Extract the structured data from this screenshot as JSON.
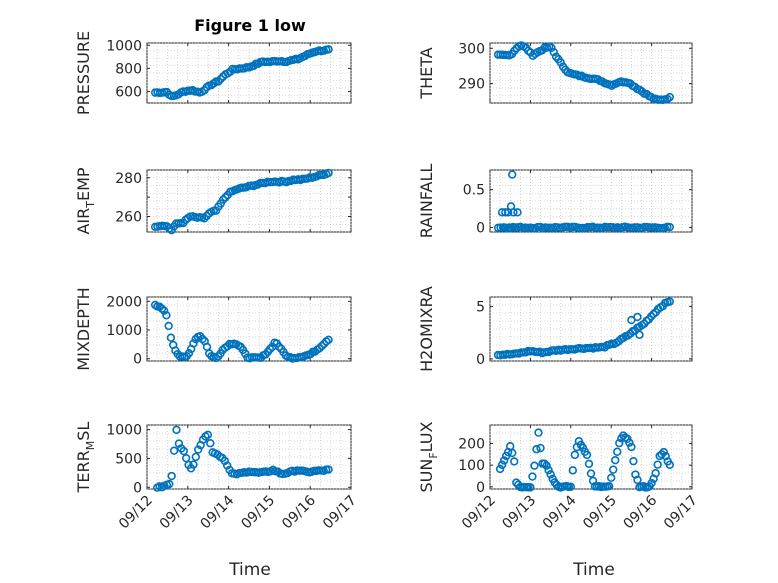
{
  "figure": {
    "title": "Figure 1 low",
    "xlabel": "Time"
  },
  "colors": {
    "marker": "#0072BD",
    "axis": "#262626",
    "grid": "#b8b8b8"
  },
  "chart_data": [
    {
      "type": "scatter",
      "id": "pressure",
      "ylabel": "PRESSURE",
      "ylabel_sub": "",
      "ylim": [
        500,
        1020
      ],
      "yticks": [
        600,
        800,
        1000
      ],
      "yticklabels": [
        "600",
        "800",
        "1000"
      ],
      "xlim": [
        0,
        5
      ],
      "xticklabels": [
        "09/12",
        "09/13",
        "09/14",
        "09/15",
        "09/16",
        "09/17"
      ],
      "show_xticklabels": false,
      "title": "Figure 1 low",
      "grid": true,
      "curve": [
        [
          0.2,
          590
        ],
        [
          0.5,
          595
        ],
        [
          0.6,
          555
        ],
        [
          0.7,
          565
        ],
        [
          0.9,
          600
        ],
        [
          1.1,
          612
        ],
        [
          1.3,
          590
        ],
        [
          1.5,
          640
        ],
        [
          1.6,
          665
        ],
        [
          1.75,
          690
        ],
        [
          1.9,
          740
        ],
        [
          2.1,
          790
        ],
        [
          2.3,
          800
        ],
        [
          2.5,
          810
        ],
        [
          2.7,
          840
        ],
        [
          2.85,
          860
        ],
        [
          3.0,
          855
        ],
        [
          3.2,
          865
        ],
        [
          3.4,
          860
        ],
        [
          3.55,
          870
        ],
        [
          3.7,
          880
        ],
        [
          3.85,
          905
        ],
        [
          4.0,
          930
        ],
        [
          4.15,
          950
        ],
        [
          4.3,
          955
        ],
        [
          4.45,
          960
        ]
      ],
      "count": 75,
      "points": []
    },
    {
      "type": "scatter",
      "id": "theta",
      "ylabel": "THETA",
      "ylabel_sub": "",
      "ylim": [
        284.5,
        301.5
      ],
      "yticks": [
        290,
        300
      ],
      "yticklabels": [
        "290",
        "300"
      ],
      "xlim": [
        0,
        5
      ],
      "xticklabels": [
        "09/12",
        "09/13",
        "09/14",
        "09/15",
        "09/16",
        "09/17"
      ],
      "show_xticklabels": false,
      "title": "",
      "grid": true,
      "curve": [
        [
          0.2,
          298
        ],
        [
          0.5,
          298
        ],
        [
          0.65,
          300
        ],
        [
          0.75,
          301
        ],
        [
          0.9,
          300
        ],
        [
          1.05,
          298
        ],
        [
          1.2,
          299
        ],
        [
          1.35,
          300
        ],
        [
          1.5,
          300.5
        ],
        [
          1.65,
          297.5
        ],
        [
          1.8,
          295
        ],
        [
          1.95,
          293
        ],
        [
          2.1,
          292.5
        ],
        [
          2.3,
          292
        ],
        [
          2.5,
          291.5
        ],
        [
          2.7,
          291
        ],
        [
          2.9,
          290
        ],
        [
          3.0,
          289.5
        ],
        [
          3.2,
          290.5
        ],
        [
          3.4,
          290.5
        ],
        [
          3.6,
          289
        ],
        [
          3.8,
          287.5
        ],
        [
          4.0,
          286
        ],
        [
          4.15,
          285.3
        ],
        [
          4.3,
          285.5
        ],
        [
          4.45,
          286
        ]
      ],
      "count": 75,
      "points": []
    },
    {
      "type": "scatter",
      "id": "air_temp",
      "ylabel": "AIR",
      "ylabel_sub": "T",
      "ylabel_after": "EMP",
      "ylim": [
        252,
        284
      ],
      "yticks": [
        260,
        270,
        280
      ],
      "yticklabels": [
        "260",
        "",
        "280"
      ],
      "xlim": [
        0,
        5
      ],
      "xticklabels": [
        "09/12",
        "09/13",
        "09/14",
        "09/15",
        "09/16",
        "09/17"
      ],
      "show_xticklabels": false,
      "title": "",
      "grid": true,
      "curve": [
        [
          0.2,
          255
        ],
        [
          0.45,
          255.5
        ],
        [
          0.6,
          253
        ],
        [
          0.7,
          256
        ],
        [
          0.9,
          257
        ],
        [
          1.05,
          260
        ],
        [
          1.2,
          259.5
        ],
        [
          1.4,
          259
        ],
        [
          1.55,
          262
        ],
        [
          1.7,
          263
        ],
        [
          1.85,
          268
        ],
        [
          2.0,
          272
        ],
        [
          2.2,
          274
        ],
        [
          2.4,
          275
        ],
        [
          2.6,
          276
        ],
        [
          2.8,
          277
        ],
        [
          3.0,
          278
        ],
        [
          3.2,
          278
        ],
        [
          3.4,
          278
        ],
        [
          3.6,
          279
        ],
        [
          3.8,
          279
        ],
        [
          4.0,
          280
        ],
        [
          4.2,
          281
        ],
        [
          4.45,
          282.5
        ]
      ],
      "count": 75,
      "points": []
    },
    {
      "type": "scatter",
      "id": "rainfall",
      "ylabel": "RAINFALL",
      "ylabel_sub": "",
      "ylim": [
        -0.06,
        0.76
      ],
      "yticks": [
        0,
        0.5
      ],
      "yticklabels": [
        "0",
        "0.5"
      ],
      "xlim": [
        0,
        5
      ],
      "xticklabels": [
        "09/12",
        "09/13",
        "09/14",
        "09/15",
        "09/16",
        "09/17"
      ],
      "show_xticklabels": false,
      "title": "",
      "grid": true,
      "curve": [
        [
          0.2,
          0
        ],
        [
          4.45,
          0
        ]
      ],
      "count": 70,
      "points": [
        [
          0.3,
          0.2
        ],
        [
          0.38,
          0.2
        ],
        [
          0.45,
          0.2
        ],
        [
          0.52,
          0.28
        ],
        [
          0.58,
          0.2
        ],
        [
          0.68,
          0.2
        ],
        [
          0.55,
          0.7
        ],
        [
          0.35,
          0
        ],
        [
          0.48,
          0
        ],
        [
          0.62,
          0
        ]
      ]
    },
    {
      "type": "scatter",
      "id": "mixdepth",
      "ylabel": "MIXDEPTH",
      "ylabel_sub": "",
      "ylim": [
        -80,
        2150
      ],
      "yticks": [
        0,
        1000,
        2000
      ],
      "yticklabels": [
        "0",
        "1000",
        "2000"
      ],
      "xlim": [
        0,
        5
      ],
      "xticklabels": [
        "09/12",
        "09/13",
        "09/14",
        "09/15",
        "09/16",
        "09/17"
      ],
      "show_xticklabels": false,
      "title": "",
      "grid": true,
      "curve": [
        [
          0.2,
          1850
        ],
        [
          0.3,
          1800
        ],
        [
          0.42,
          1700
        ],
        [
          0.5,
          1400
        ],
        [
          0.55,
          1000
        ],
        [
          0.6,
          650
        ],
        [
          0.68,
          350
        ],
        [
          0.78,
          100
        ],
        [
          0.9,
          30
        ],
        [
          1.0,
          100
        ],
        [
          1.1,
          420
        ],
        [
          1.2,
          720
        ],
        [
          1.3,
          800
        ],
        [
          1.42,
          600
        ],
        [
          1.55,
          100
        ],
        [
          1.7,
          20
        ],
        [
          1.85,
          300
        ],
        [
          2.0,
          500
        ],
        [
          2.15,
          550
        ],
        [
          2.3,
          400
        ],
        [
          2.45,
          60
        ],
        [
          2.6,
          20
        ],
        [
          2.8,
          30
        ],
        [
          3.0,
          300
        ],
        [
          3.15,
          600
        ],
        [
          3.3,
          300
        ],
        [
          3.45,
          50
        ],
        [
          3.6,
          30
        ],
        [
          3.8,
          80
        ],
        [
          4.0,
          150
        ],
        [
          4.2,
          350
        ],
        [
          4.35,
          550
        ],
        [
          4.45,
          680
        ]
      ],
      "count": 78,
      "points": []
    },
    {
      "type": "scatter",
      "id": "h2omixra",
      "ylabel": "H2OMIXRA",
      "ylabel_sub": "",
      "ylim": [
        -0.2,
        5.9
      ],
      "yticks": [
        0,
        5
      ],
      "yticklabels": [
        "0",
        "5"
      ],
      "xlim": [
        0,
        5
      ],
      "xticklabels": [
        "09/12",
        "09/13",
        "09/14",
        "09/15",
        "09/16",
        "09/17"
      ],
      "show_xticklabels": false,
      "title": "",
      "grid": true,
      "curve": [
        [
          0.2,
          0.4
        ],
        [
          0.6,
          0.45
        ],
        [
          0.8,
          0.6
        ],
        [
          1.0,
          0.75
        ],
        [
          1.3,
          0.6
        ],
        [
          1.6,
          0.8
        ],
        [
          1.9,
          0.9
        ],
        [
          2.2,
          1.0
        ],
        [
          2.5,
          1.05
        ],
        [
          2.8,
          1.1
        ],
        [
          3.1,
          1.5
        ],
        [
          3.4,
          2.2
        ],
        [
          3.6,
          2.8
        ],
        [
          3.8,
          3.3
        ],
        [
          4.0,
          4.1
        ],
        [
          4.2,
          4.9
        ],
        [
          4.35,
          5.3
        ],
        [
          4.45,
          5.5
        ]
      ],
      "count": 75,
      "points": [
        [
          3.5,
          3.7
        ],
        [
          3.65,
          4.0
        ],
        [
          3.7,
          2.3
        ]
      ]
    },
    {
      "type": "scatter",
      "id": "terr_msl",
      "ylabel": "TERR",
      "ylabel_sub": "M",
      "ylabel_after": "SL",
      "ylim": [
        -30,
        1080
      ],
      "yticks": [
        0,
        500,
        1000
      ],
      "yticklabels": [
        "0",
        "500",
        "1000"
      ],
      "xlim": [
        0,
        5
      ],
      "xticklabels": [
        "09/12",
        "09/13",
        "09/14",
        "09/15",
        "09/16",
        "09/17"
      ],
      "show_xticklabels": true,
      "title": "",
      "grid": true,
      "curve": [
        [
          0.25,
          0
        ],
        [
          0.4,
          10
        ],
        [
          0.55,
          60
        ],
        [
          0.62,
          220
        ],
        [
          0.68,
          800
        ],
        [
          0.72,
          1020
        ],
        [
          0.8,
          700
        ],
        [
          0.9,
          620
        ],
        [
          1.0,
          420
        ],
        [
          1.1,
          320
        ],
        [
          1.2,
          540
        ],
        [
          1.3,
          720
        ],
        [
          1.4,
          880
        ],
        [
          1.5,
          910
        ],
        [
          1.6,
          620
        ],
        [
          1.75,
          560
        ],
        [
          1.9,
          480
        ],
        [
          2.0,
          320
        ],
        [
          2.1,
          220
        ],
        [
          2.3,
          240
        ],
        [
          2.5,
          280
        ],
        [
          2.7,
          250
        ],
        [
          2.9,
          260
        ],
        [
          3.1,
          300
        ],
        [
          3.3,
          230
        ],
        [
          3.5,
          260
        ],
        [
          3.7,
          300
        ],
        [
          3.9,
          260
        ],
        [
          4.1,
          280
        ],
        [
          4.3,
          290
        ],
        [
          4.45,
          300
        ]
      ],
      "count": 72,
      "points": []
    },
    {
      "type": "scatter",
      "id": "sun_flux",
      "ylabel": "SUN",
      "ylabel_sub": "F",
      "ylabel_after": "LUX",
      "ylim": [
        -10,
        285
      ],
      "yticks": [
        0,
        100,
        200
      ],
      "yticklabels": [
        "0",
        "100",
        "200"
      ],
      "xlim": [
        0,
        5
      ],
      "xticklabels": [
        "09/12",
        "09/13",
        "09/14",
        "09/15",
        "09/16",
        "09/17"
      ],
      "show_xticklabels": true,
      "title": "",
      "grid": true,
      "curve": [
        [
          0.25,
          80
        ],
        [
          0.35,
          120
        ],
        [
          0.5,
          185
        ],
        [
          0.6,
          120
        ],
        [
          0.65,
          20
        ],
        [
          0.75,
          0
        ],
        [
          1.0,
          0
        ],
        [
          1.1,
          100
        ],
        [
          1.2,
          250
        ],
        [
          1.3,
          110
        ],
        [
          1.4,
          100
        ],
        [
          1.5,
          60
        ],
        [
          1.6,
          20
        ],
        [
          1.7,
          0
        ],
        [
          2.0,
          0
        ],
        [
          2.1,
          150
        ],
        [
          2.2,
          210
        ],
        [
          2.3,
          180
        ],
        [
          2.4,
          150
        ],
        [
          2.5,
          60
        ],
        [
          2.6,
          0
        ],
        [
          2.95,
          0
        ],
        [
          3.1,
          120
        ],
        [
          3.2,
          200
        ],
        [
          3.3,
          240
        ],
        [
          3.4,
          220
        ],
        [
          3.5,
          180
        ],
        [
          3.6,
          60
        ],
        [
          3.7,
          0
        ],
        [
          3.95,
          0
        ],
        [
          4.1,
          60
        ],
        [
          4.2,
          140
        ],
        [
          4.3,
          160
        ],
        [
          4.4,
          120
        ],
        [
          4.45,
          100
        ]
      ],
      "count": 85,
      "points": []
    }
  ]
}
